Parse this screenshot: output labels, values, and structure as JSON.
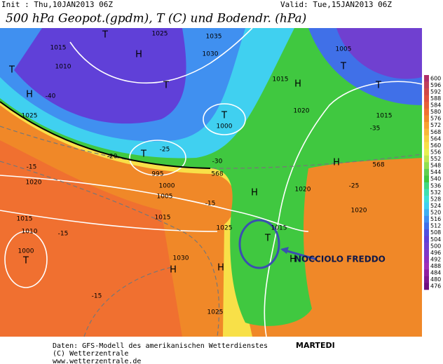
{
  "header": {
    "init": "Init : Thu,10JAN2013 06Z",
    "valid": "Valid: Tue,15JAN2013 06Z",
    "title": "500 hPa Geopot.(gpdm), T (C) und Bodendr. (hPa)"
  },
  "legend": {
    "values": [
      600,
      596,
      592,
      588,
      584,
      580,
      576,
      572,
      568,
      564,
      560,
      556,
      552,
      548,
      544,
      540,
      536,
      532,
      528,
      524,
      520,
      516,
      512,
      508,
      504,
      500,
      496,
      492,
      488,
      484,
      480,
      476
    ],
    "colors": [
      "#b0306a",
      "#c0405a",
      "#d04848",
      "#e05040",
      "#e86038",
      "#f07030",
      "#f08828",
      "#f8a030",
      "#f8b838",
      "#f8d040",
      "#f8e048",
      "#e8f050",
      "#c0e850",
      "#90e050",
      "#60d050",
      "#40c840",
      "#40d880",
      "#40e0b0",
      "#40e0d8",
      "#40d0f0",
      "#40b0f0",
      "#4090f0",
      "#4070e8",
      "#5050e0",
      "#6040d8",
      "#7040d0",
      "#8038c8",
      "#9030c0",
      "#a030b8",
      "#9020a0",
      "#801890",
      "#701080"
    ]
  },
  "map": {
    "labels": [
      "T",
      "1000",
      "1010",
      "1015",
      "1020",
      "1025",
      "1015",
      "1010",
      "H",
      "T",
      "T",
      "1025",
      "1035",
      "1030",
      "H",
      "T",
      "1005",
      "T",
      "H",
      "1015",
      "1020",
      "1015",
      "T",
      "1000",
      "T",
      "T",
      "995",
      "1000",
      "1005",
      "1015",
      "1025",
      "1030",
      "H",
      "H",
      "1025",
      "T",
      "1015",
      "1020",
      "H",
      "1020",
      "H",
      "H",
      "-30",
      "-25",
      "-15",
      "-15",
      "-15",
      "-20",
      "-35",
      "-40",
      "-25",
      "-15",
      "568",
      "568"
    ]
  },
  "annotation": "NOCCIOLO FREDDO",
  "day": "MARTEDI",
  "footer": [
    "Daten: GFS-Modell des amerikanischen Wetterdienstes",
    "(C) Wetterzentrale",
    "www.wetterzentrale.de"
  ]
}
